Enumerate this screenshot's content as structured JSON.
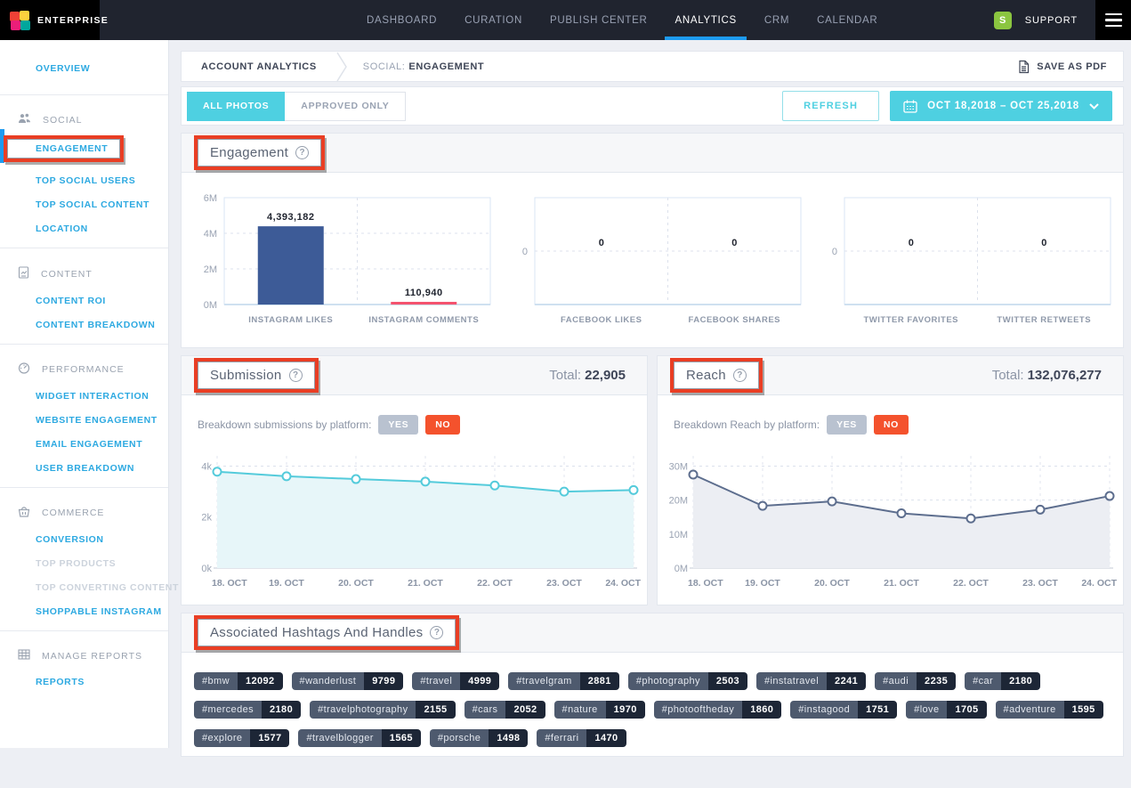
{
  "navbar": {
    "brand": "ENTERPRISE",
    "items": [
      {
        "label": "DASHBOARD",
        "active": false,
        "dot": false
      },
      {
        "label": "CURATION",
        "active": false,
        "dot": false
      },
      {
        "label": "PUBLISH CENTER",
        "active": false,
        "dot": false
      },
      {
        "label": "ANALYTICS",
        "active": true,
        "dot": false
      },
      {
        "label": "CRM",
        "active": false,
        "dot": true
      },
      {
        "label": "CALENDAR",
        "active": false,
        "dot": false
      }
    ],
    "avatar": "S",
    "support": "SUPPORT"
  },
  "sidebar": {
    "overview": "OVERVIEW",
    "sections": [
      {
        "icon": "users-icon",
        "label": "SOCIAL",
        "items": [
          {
            "label": "ENGAGEMENT",
            "active": true,
            "annotated": true,
            "disabled": false
          },
          {
            "label": "TOP SOCIAL USERS",
            "active": false,
            "annotated": false,
            "disabled": false
          },
          {
            "label": "TOP SOCIAL CONTENT",
            "active": false,
            "annotated": false,
            "disabled": false
          },
          {
            "label": "LOCATION",
            "active": false,
            "annotated": false,
            "disabled": false
          }
        ]
      },
      {
        "icon": "document-icon",
        "label": "CONTENT",
        "items": [
          {
            "label": "CONTENT ROI",
            "active": false,
            "annotated": false,
            "disabled": false
          },
          {
            "label": "CONTENT BREAKDOWN",
            "active": false,
            "annotated": false,
            "disabled": false
          }
        ]
      },
      {
        "icon": "gauge-icon",
        "label": "PERFORMANCE",
        "items": [
          {
            "label": "WIDGET INTERACTION",
            "active": false,
            "annotated": false,
            "disabled": false
          },
          {
            "label": "WEBSITE ENGAGEMENT",
            "active": false,
            "annotated": false,
            "disabled": false
          },
          {
            "label": "EMAIL ENGAGEMENT",
            "active": false,
            "annotated": false,
            "disabled": false
          },
          {
            "label": "USER BREAKDOWN",
            "active": false,
            "annotated": false,
            "disabled": false
          }
        ]
      },
      {
        "icon": "basket-icon",
        "label": "COMMERCE",
        "items": [
          {
            "label": "CONVERSION",
            "active": false,
            "annotated": false,
            "disabled": false
          },
          {
            "label": "TOP PRODUCTS",
            "active": false,
            "annotated": false,
            "disabled": true
          },
          {
            "label": "TOP CONVERTING CONTENT",
            "active": false,
            "annotated": false,
            "disabled": true
          },
          {
            "label": "SHOPPABLE INSTAGRAM",
            "active": false,
            "annotated": false,
            "disabled": false
          }
        ]
      },
      {
        "icon": "table-icon",
        "label": "MANAGE REPORTS",
        "items": [
          {
            "label": "REPORTS",
            "active": false,
            "annotated": false,
            "disabled": false
          }
        ]
      }
    ]
  },
  "breadcrumb": {
    "root": "ACCOUNT ANALYTICS",
    "section": "SOCIAL:",
    "current": "ENGAGEMENT",
    "save_pdf": "SAVE AS PDF"
  },
  "filters": {
    "tab_all": "ALL PHOTOS",
    "tab_approved": "APPROVED ONLY",
    "refresh": "REFRESH",
    "date_range": "OCT 18,2018 – OCT 25,2018"
  },
  "panels": {
    "engagement": {
      "title": "Engagement"
    },
    "submission": {
      "title": "Submission",
      "total_label": "Total:",
      "total": "22,905",
      "breakdown_label": "Breakdown submissions by platform:",
      "yes": "YES",
      "no": "NO"
    },
    "reach": {
      "title": "Reach",
      "total_label": "Total:",
      "total": "132,076,277",
      "breakdown_label": "Breakdown Reach by platform:",
      "yes": "YES",
      "no": "NO"
    },
    "hashtags": {
      "title": "Associated Hashtags And Handles"
    }
  },
  "chart_data": [
    {
      "id": "chart-instagram",
      "type": "bar",
      "title": "Instagram engagement",
      "categories": [
        "INSTAGRAM LIKES",
        "INSTAGRAM COMMENTS"
      ],
      "values": [
        4393182,
        110940
      ],
      "value_labels": [
        "4,393,182",
        "110,940"
      ],
      "bar_colors": [
        "#3d5b97",
        "#f4536e"
      ],
      "yticks": [
        {
          "v": 0,
          "label": "0M"
        },
        {
          "v": 2000000,
          "label": "2M"
        },
        {
          "v": 4000000,
          "label": "4M"
        },
        {
          "v": 6000000,
          "label": "6M"
        }
      ],
      "ylim": [
        0,
        6000000
      ],
      "grid": "dashed"
    },
    {
      "id": "chart-facebook",
      "type": "bar-zero",
      "title": "Facebook engagement",
      "categories": [
        "FACEBOOK LIKES",
        "FACEBOOK SHARES"
      ],
      "values": [
        0,
        0
      ],
      "value_labels": [
        "0",
        "0"
      ],
      "yticks": [
        {
          "v": 0,
          "label": "0"
        }
      ],
      "ylim": [
        -1,
        1
      ],
      "grid": "dashed"
    },
    {
      "id": "chart-twitter",
      "type": "bar-zero",
      "title": "Twitter engagement",
      "categories": [
        "TWITTER FAVORITES",
        "TWITTER RETWEETS"
      ],
      "values": [
        0,
        0
      ],
      "value_labels": [
        "0",
        "0"
      ],
      "yticks": [
        {
          "v": 0,
          "label": "0"
        }
      ],
      "ylim": [
        -1,
        1
      ],
      "grid": "dashed"
    },
    {
      "id": "chart-submission",
      "type": "line",
      "title": "Submissions by day",
      "x": [
        "18. OCT",
        "19. OCT",
        "20. OCT",
        "21. OCT",
        "22. OCT",
        "23. OCT",
        "24. OCT"
      ],
      "values": [
        3780,
        3600,
        3490,
        3390,
        3240,
        3000,
        3060
      ],
      "yticks": [
        {
          "v": 0,
          "label": "0k"
        },
        {
          "v": 2000,
          "label": "2k"
        },
        {
          "v": 4000,
          "label": "4k"
        }
      ],
      "ylim": [
        0,
        4400
      ],
      "color": "#54cbdb",
      "fill": "#e7f6f9",
      "grid": "dashed",
      "legend": "none"
    },
    {
      "id": "chart-reach",
      "type": "line",
      "title": "Reach by day",
      "x": [
        "18. OCT",
        "19. OCT",
        "20. OCT",
        "21. OCT",
        "22. OCT",
        "23. OCT",
        "24. OCT"
      ],
      "values": [
        27500000,
        18300000,
        19600000,
        16100000,
        14600000,
        17200000,
        21200000
      ],
      "yticks": [
        {
          "v": 0,
          "label": "0M"
        },
        {
          "v": 10000000,
          "label": "10M"
        },
        {
          "v": 20000000,
          "label": "20M"
        },
        {
          "v": 30000000,
          "label": "30M"
        }
      ],
      "ylim": [
        0,
        33000000
      ],
      "color": "#5d6e8e",
      "fill": "#eceef3",
      "grid": "dashed",
      "legend": "none"
    }
  ],
  "hashtags": {
    "items": [
      {
        "tag": "#bmw",
        "count": "12092"
      },
      {
        "tag": "#wanderlust",
        "count": "9799"
      },
      {
        "tag": "#travel",
        "count": "4999"
      },
      {
        "tag": "#travelgram",
        "count": "2881"
      },
      {
        "tag": "#photography",
        "count": "2503"
      },
      {
        "tag": "#instatravel",
        "count": "2241"
      },
      {
        "tag": "#audi",
        "count": "2235"
      },
      {
        "tag": "#car",
        "count": "2180"
      },
      {
        "tag": "#mercedes",
        "count": "2180"
      },
      {
        "tag": "#travelphotography",
        "count": "2155"
      },
      {
        "tag": "#cars",
        "count": "2052"
      },
      {
        "tag": "#nature",
        "count": "1970"
      },
      {
        "tag": "#photooftheday",
        "count": "1860"
      },
      {
        "tag": "#instagood",
        "count": "1751"
      },
      {
        "tag": "#love",
        "count": "1705"
      },
      {
        "tag": "#adventure",
        "count": "1595"
      },
      {
        "tag": "#explore",
        "count": "1577"
      },
      {
        "tag": "#travelblogger",
        "count": "1565"
      },
      {
        "tag": "#porsche",
        "count": "1498"
      },
      {
        "tag": "#ferrari",
        "count": "1470"
      }
    ]
  },
  "colors": {
    "accent_teal": "#4ed0e1",
    "accent_blue": "#1d9bf1",
    "annotation_red": "#e93e24",
    "bar_blue": "#3d5b97",
    "bar_pink": "#f4536e",
    "line_teal": "#54cbdb",
    "line_slate": "#5d6e8e",
    "no_orange": "#f4522d",
    "yes_gray": "#b9c2d0",
    "avatar_green": "#8bc540"
  }
}
